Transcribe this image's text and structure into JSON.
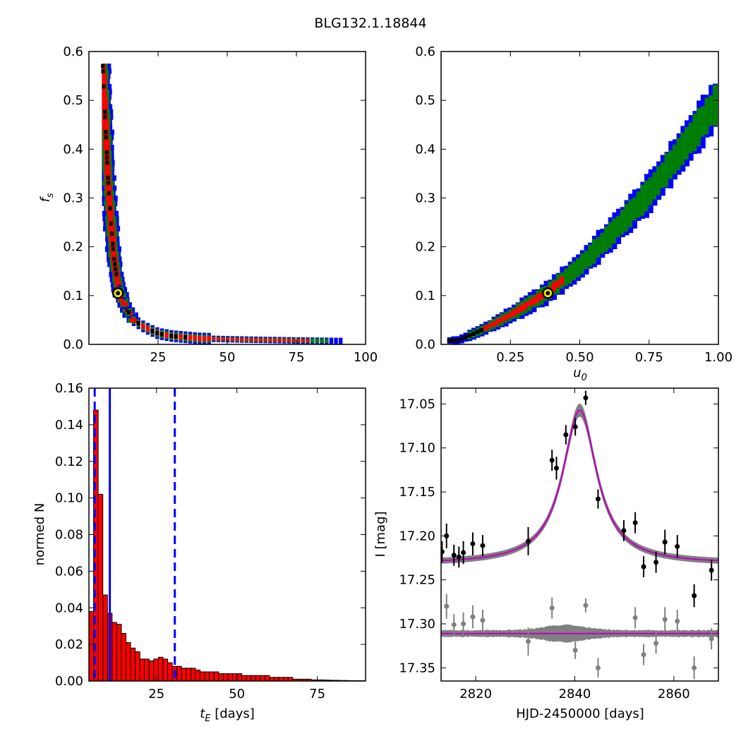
{
  "figure_title": "BLG132.1.18844",
  "colors": {
    "blue": "#0000ff",
    "green": "#007f00",
    "red": "#ff0000",
    "black": "#000000",
    "marker_fill": "#e8e800",
    "band_gray": "#808080",
    "model_magenta": "#c000c0",
    "points_gray": "#808080"
  },
  "chart_data": [
    {
      "id": "fs_vs_tE",
      "type": "heatmap",
      "xlabel": "",
      "ylabel": "f_s",
      "xlim": [
        0,
        100
      ],
      "ylim": [
        0,
        0.6
      ],
      "xticks": [
        "25",
        "50",
        "75",
        "100"
      ],
      "yticks": [
        "0.0",
        "0.1",
        "0.2",
        "0.3",
        "0.4",
        "0.5",
        "0.6"
      ],
      "legend": "none",
      "grid": false,
      "regions_note": "confidence contours: blue outer, green, red inner, black densest",
      "ridge": [
        [
          5,
          0.57
        ],
        [
          6,
          0.45
        ],
        [
          7,
          0.33
        ],
        [
          8,
          0.25
        ],
        [
          9,
          0.18
        ],
        [
          10,
          0.14
        ],
        [
          11,
          0.11
        ],
        [
          13,
          0.08
        ],
        [
          16,
          0.05
        ],
        [
          20,
          0.035
        ],
        [
          25,
          0.022
        ],
        [
          30,
          0.017
        ],
        [
          40,
          0.012
        ],
        [
          55,
          0.01
        ],
        [
          75,
          0.008
        ],
        [
          90,
          0.007
        ]
      ],
      "best_fit": [
        10.5,
        0.105
      ]
    },
    {
      "id": "fs_vs_u0",
      "type": "heatmap",
      "xlabel": "u_0",
      "ylabel": "",
      "xlim": [
        0,
        1.0
      ],
      "ylim": [
        0,
        0.6
      ],
      "xticks": [
        "0.25",
        "0.50",
        "0.75",
        "1.00"
      ],
      "yticks": [
        "0.0",
        "0.1",
        "0.2",
        "0.3",
        "0.4",
        "0.5",
        "0.6"
      ],
      "legend": "none",
      "grid": false,
      "ridge": [
        [
          0.06,
          0.008
        ],
        [
          0.15,
          0.03
        ],
        [
          0.25,
          0.06
        ],
        [
          0.38,
          0.105
        ],
        [
          0.5,
          0.16
        ],
        [
          0.62,
          0.23
        ],
        [
          0.75,
          0.31
        ],
        [
          0.87,
          0.4
        ],
        [
          1.0,
          0.5
        ]
      ],
      "best_fit": [
        0.385,
        0.105
      ]
    },
    {
      "id": "tE_hist",
      "type": "bar",
      "xlabel": "t_E [days]",
      "ylabel": "normed N",
      "xlim": [
        4,
        90
      ],
      "ylim": [
        0,
        0.16
      ],
      "xticks": [
        "25",
        "50",
        "75"
      ],
      "yticks": [
        "0.00",
        "0.02",
        "0.04",
        "0.06",
        "0.08",
        "0.10",
        "0.12",
        "0.14",
        "0.16"
      ],
      "legend": "none",
      "grid": false,
      "bin_start": 4,
      "bin_width": 1.44,
      "values": [
        0.038,
        0.148,
        0.102,
        0.047,
        0.037,
        0.032,
        0.031,
        0.026,
        0.021,
        0.018,
        0.016,
        0.012,
        0.012,
        0.011,
        0.012,
        0.013,
        0.012,
        0.01,
        0.008,
        0.008,
        0.007,
        0.007,
        0.007,
        0.006,
        0.005,
        0.005,
        0.005,
        0.005,
        0.004,
        0.004,
        0.004,
        0.004,
        0.004,
        0.003,
        0.003,
        0.003,
        0.003,
        0.003,
        0.003,
        0.002,
        0.002,
        0.002,
        0.002,
        0.002,
        0.001,
        0.001,
        0.001,
        0.001,
        0.0006,
        0.0006,
        0.0006,
        0.0005,
        0.0004,
        0.0004,
        0.0003,
        0.0003,
        0.0002,
        0.0002,
        0.0002,
        0.0002
      ],
      "vlines": [
        {
          "x": 5.8,
          "style": "dashed"
        },
        {
          "x": 10.5,
          "style": "solid"
        },
        {
          "x": 30.7,
          "style": "dashed"
        }
      ]
    },
    {
      "id": "lightcurve",
      "type": "scatter",
      "xlabel": "HJD-2450000 [days]",
      "ylabel": "I [mag]",
      "xlim": [
        2813,
        2869
      ],
      "ylim": [
        17.365,
        17.032
      ],
      "xticks": [
        {
          "v": 2820,
          "label": "2820"
        },
        {
          "v": 2840,
          "label": "2840"
        },
        {
          "v": 2860,
          "label": "2860"
        }
      ],
      "yticks": [
        {
          "v": 17.05,
          "label": "17.05"
        },
        {
          "v": 17.1,
          "label": "17.10"
        },
        {
          "v": 17.15,
          "label": "17.15"
        },
        {
          "v": 17.2,
          "label": "17.20"
        },
        {
          "v": 17.25,
          "label": "17.25"
        },
        {
          "v": 17.3,
          "label": "17.30"
        },
        {
          "v": 17.35,
          "label": "17.35"
        }
      ],
      "legend": "none",
      "grid": false,
      "model": {
        "t0": 2841.0,
        "baseline": 17.232,
        "peak": 17.057,
        "residual_line": 17.311
      },
      "data_points": [
        {
          "t": 2813.2,
          "mag": 17.218,
          "err": 0.012
        },
        {
          "t": 2814.1,
          "mag": 17.2,
          "err": 0.014
        },
        {
          "t": 2815.6,
          "mag": 17.222,
          "err": 0.012
        },
        {
          "t": 2816.6,
          "mag": 17.224,
          "err": 0.012
        },
        {
          "t": 2817.5,
          "mag": 17.219,
          "err": 0.013
        },
        {
          "t": 2819.4,
          "mag": 17.209,
          "err": 0.013
        },
        {
          "t": 2821.4,
          "mag": 17.211,
          "err": 0.012
        },
        {
          "t": 2830.6,
          "mag": 17.206,
          "err": 0.016
        },
        {
          "t": 2835.4,
          "mag": 17.114,
          "err": 0.012
        },
        {
          "t": 2836.3,
          "mag": 17.123,
          "err": 0.013
        },
        {
          "t": 2838.2,
          "mag": 17.085,
          "err": 0.011
        },
        {
          "t": 2840.1,
          "mag": 17.076,
          "err": 0.01
        },
        {
          "t": 2842.2,
          "mag": 17.043,
          "err": 0.008
        },
        {
          "t": 2844.7,
          "mag": 17.158,
          "err": 0.011
        },
        {
          "t": 2849.9,
          "mag": 17.194,
          "err": 0.012
        },
        {
          "t": 2852.2,
          "mag": 17.185,
          "err": 0.012
        },
        {
          "t": 2853.9,
          "mag": 17.235,
          "err": 0.012
        },
        {
          "t": 2856.4,
          "mag": 17.23,
          "err": 0.012
        },
        {
          "t": 2858.2,
          "mag": 17.207,
          "err": 0.014
        },
        {
          "t": 2860.7,
          "mag": 17.212,
          "err": 0.013
        },
        {
          "t": 2864.1,
          "mag": 17.268,
          "err": 0.013
        },
        {
          "t": 2867.6,
          "mag": 17.239,
          "err": 0.012
        }
      ],
      "residual_points": [
        {
          "t": 2814.1,
          "mag": 17.28,
          "err": 0.014
        },
        {
          "t": 2815.6,
          "mag": 17.301,
          "err": 0.012
        },
        {
          "t": 2817.5,
          "mag": 17.3,
          "err": 0.013
        },
        {
          "t": 2819.4,
          "mag": 17.292,
          "err": 0.013
        },
        {
          "t": 2821.4,
          "mag": 17.296,
          "err": 0.012
        },
        {
          "t": 2830.6,
          "mag": 17.32,
          "err": 0.016
        },
        {
          "t": 2835.4,
          "mag": 17.282,
          "err": 0.012
        },
        {
          "t": 2840.1,
          "mag": 17.33,
          "err": 0.01
        },
        {
          "t": 2842.2,
          "mag": 17.279,
          "err": 0.008
        },
        {
          "t": 2844.7,
          "mag": 17.35,
          "err": 0.011
        },
        {
          "t": 2852.2,
          "mag": 17.293,
          "err": 0.012
        },
        {
          "t": 2853.9,
          "mag": 17.335,
          "err": 0.012
        },
        {
          "t": 2856.4,
          "mag": 17.322,
          "err": 0.012
        },
        {
          "t": 2858.2,
          "mag": 17.295,
          "err": 0.014
        },
        {
          "t": 2860.7,
          "mag": 17.297,
          "err": 0.013
        },
        {
          "t": 2864.1,
          "mag": 17.35,
          "err": 0.013
        },
        {
          "t": 2867.6,
          "mag": 17.317,
          "err": 0.012
        }
      ]
    }
  ]
}
